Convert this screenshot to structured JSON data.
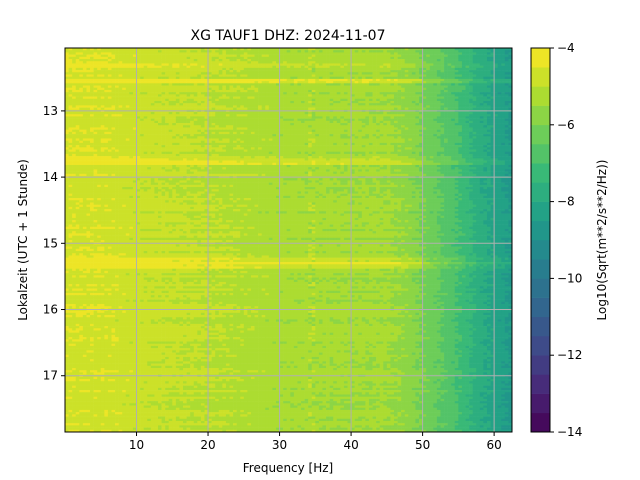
{
  "chart_data": {
    "type": "heatmap",
    "title": "XG TAUF1  DHZ: 2024-11-07",
    "xlabel": "Frequency [Hz]",
    "ylabel": "Lokalzeit (UTC + 1 Stunde)",
    "colorbar_label": "Log10(Sqrt(m**2/s**2/Hz))",
    "colormap": "viridis",
    "grid": true,
    "xlim": [
      0,
      62.5
    ],
    "ylim": [
      12.05,
      17.85
    ],
    "y_inverted": true,
    "clim": [
      -14,
      -4
    ],
    "x_ticks": [
      10,
      20,
      30,
      40,
      50,
      60
    ],
    "y_ticks": [
      13,
      14,
      15,
      16,
      17
    ],
    "colorbar_ticks": [
      -4,
      -6,
      -8,
      -10,
      -12,
      -14
    ],
    "colorbar_levels": 20,
    "profile_x": [
      0,
      5,
      10,
      20,
      30,
      40,
      45,
      48,
      52,
      55,
      58,
      62.5
    ],
    "profile_z": [
      -4.6,
      -4.6,
      -4.8,
      -5.0,
      -5.3,
      -5.4,
      -5.4,
      -5.7,
      -6.4,
      -7.0,
      -7.8,
      -8.6
    ],
    "bright_bands": [
      {
        "time": 12.55,
        "delta": 0.9
      },
      {
        "time": 13.72,
        "delta": 0.4
      },
      {
        "time": 13.78,
        "delta": 0.7
      },
      {
        "time": 15.27,
        "delta": 0.6
      },
      {
        "time": 15.33,
        "delta": 0.5
      },
      {
        "time": 12.3,
        "delta": 0.3
      }
    ],
    "spectral_line_hz": 34.5
  }
}
